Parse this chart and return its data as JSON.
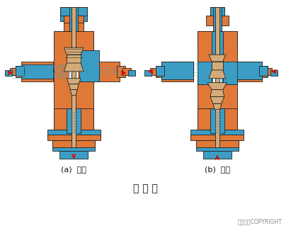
{
  "title": "三 通 阀",
  "label_a": "(a)  分流",
  "label_b": "(b)  合流",
  "copyright": "东方仳真COPYRIGHT",
  "bg_color": "#ffffff",
  "orange_color": "#E07838",
  "blue_color": "#3B9DC4",
  "tan_color": "#D4AA78",
  "outline": "#222222",
  "red": "#CC1111",
  "title_fs": 10,
  "label_fs": 8,
  "copy_fs": 5.5
}
